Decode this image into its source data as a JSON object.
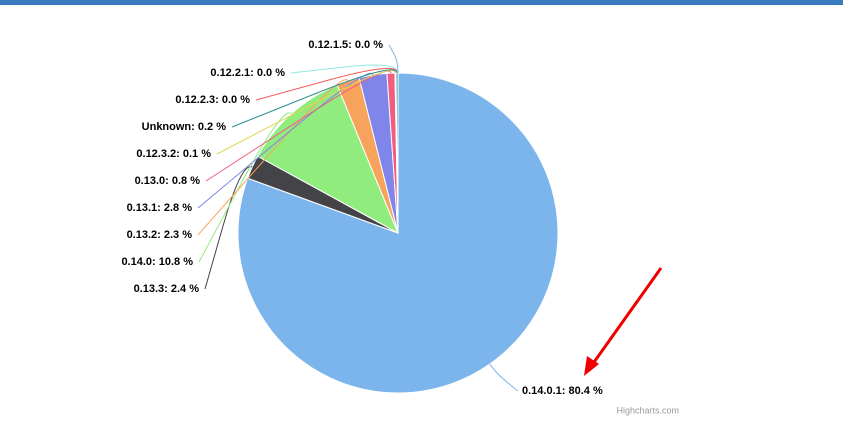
{
  "chart_data": {
    "type": "pie",
    "values": [
      80.4,
      2.4,
      10.8,
      2.3,
      2.8,
      0.8,
      0.1,
      0.2,
      0.0,
      0.0,
      0.0
    ],
    "value_labels": [
      "0.14.0.1: 80.4 %",
      "0.13.3: 2.4 %",
      "0.14.0: 10.8 %",
      "0.13.2: 2.3 %",
      "0.13.1: 2.8 %",
      "0.13.0: 0.8 %",
      "0.12.3.2: 0.1 %",
      "Unknown: 0.2 %",
      "0.12.2.3: 0.0 %",
      "0.12.2.1: 0.0 %",
      "0.12.1.5: 0.0 %"
    ],
    "colors": [
      "#7cb5ec",
      "#434348",
      "#90ed7d",
      "#f7a35c",
      "#8085e9",
      "#f15c80",
      "#e4d354",
      "#2b908f",
      "#f45b5b",
      "#91e8e1",
      "#7cb5ec"
    ],
    "credits": "Highcharts.com"
  }
}
